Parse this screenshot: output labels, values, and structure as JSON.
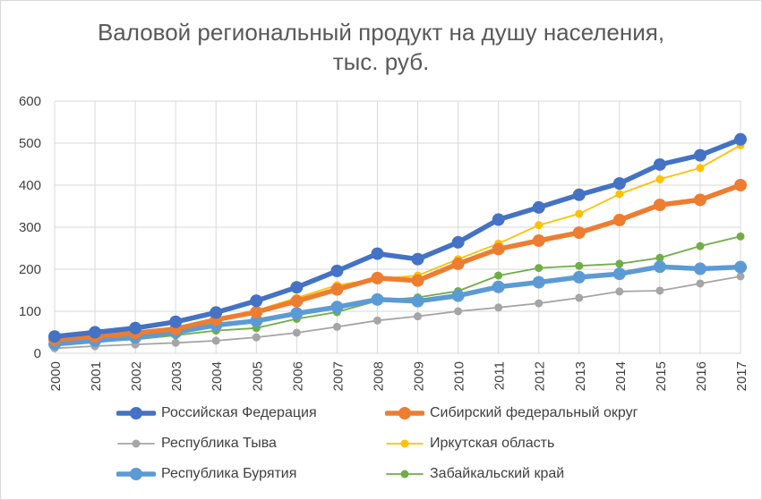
{
  "title_line1": "Валовой региональный продукт на душу населения,",
  "title_line2": "тыс. руб.",
  "chart_data": {
    "type": "line",
    "title": "Валовой региональный продукт на душу населения, тыс. руб.",
    "xlabel": "",
    "ylabel": "",
    "ylim": [
      0,
      600
    ],
    "yticks": [
      0,
      100,
      200,
      300,
      400,
      500,
      600
    ],
    "grid": "vertical and horizontal",
    "legend_position": "bottom",
    "x": [
      "2000",
      "2001",
      "2002",
      "2003",
      "2004",
      "2005",
      "2006",
      "2007",
      "2008",
      "2009",
      "2010",
      "2011",
      "2012",
      "2013",
      "2014",
      "2015",
      "2016",
      "2017"
    ],
    "series": [
      {
        "name": "Российская Федерация",
        "color": "#4472C4",
        "values": [
          40,
          50,
          60,
          75,
          97,
          125,
          157,
          196,
          237,
          224,
          264,
          318,
          347,
          377,
          404,
          449,
          471,
          509
        ]
      },
      {
        "name": "Сибирский федеральный округ",
        "color": "#ED7D31",
        "values": [
          33,
          40,
          48,
          58,
          80,
          98,
          124,
          152,
          179,
          173,
          213,
          248,
          268,
          287,
          317,
          353,
          365,
          400
        ]
      },
      {
        "name": "Республика Тыва",
        "color": "#A5A5A5",
        "values": [
          12,
          17,
          21,
          25,
          30,
          38,
          49,
          63,
          78,
          88,
          100,
          109,
          119,
          132,
          147,
          149,
          166,
          183
        ]
      },
      {
        "name": "Иркутская область",
        "color": "#FFC000",
        "values": [
          35,
          41,
          49,
          59,
          82,
          102,
          132,
          162,
          177,
          185,
          224,
          261,
          305,
          332,
          379,
          414,
          441,
          495
        ]
      },
      {
        "name": "Республика Бурятия",
        "color": "#5B9BD5",
        "values": [
          22,
          30,
          38,
          50,
          67,
          77,
          95,
          110,
          128,
          124,
          137,
          158,
          169,
          181,
          189,
          206,
          201,
          205
        ]
      },
      {
        "name": "Забайкальский край",
        "color": "#70AD47",
        "values": [
          26,
          28,
          33,
          43,
          54,
          60,
          82,
          98,
          125,
          133,
          148,
          185,
          203,
          208,
          213,
          227,
          255,
          278
        ]
      }
    ]
  }
}
